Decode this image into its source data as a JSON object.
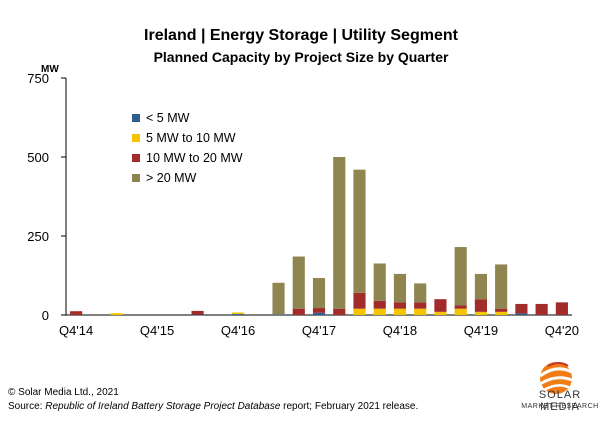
{
  "title_line1": "Ireland | Energy Storage | Utility Segment",
  "title_line2": "Planned Capacity by Project Size by Quarter",
  "footer": {
    "copyright": "© Solar Media Ltd., 2021",
    "source_prefix": "Source: ",
    "source_italic": "Republic of Ireland Battery Storage Project Database",
    "source_suffix": " report; February 2021 release."
  },
  "logo": {
    "line1": "SOLAR MEDIA",
    "line2": "MARKET RESEARCH"
  },
  "colors": {
    "lt5": "#2e5e8e",
    "5to10": "#f5c400",
    "10to20": "#a22b2b",
    "gt20": "#8f8551"
  },
  "chart_data": {
    "type": "bar",
    "stacked": true,
    "ylabel": "MW",
    "ylim": [
      0,
      750
    ],
    "yticks": [
      0,
      250,
      500,
      750
    ],
    "x_tick_labels": [
      "Q4'14",
      "Q4'15",
      "Q4'16",
      "Q4'17",
      "Q4'18",
      "Q4'19",
      "Q4'20"
    ],
    "categories": [
      "Q4'14",
      "Q1'15",
      "Q2'15",
      "Q3'15",
      "Q4'15",
      "Q1'16",
      "Q2'16",
      "Q3'16",
      "Q4'16",
      "Q1'17",
      "Q2'17",
      "Q3'17",
      "Q4'17",
      "Q1'18",
      "Q2'18",
      "Q3'18",
      "Q4'18",
      "Q1'19",
      "Q2'19",
      "Q3'19",
      "Q4'19",
      "Q1'20",
      "Q2'20",
      "Q3'20",
      "Q4'20"
    ],
    "grid": false,
    "legend_position": "top-left",
    "series": [
      {
        "name": "< 5 MW",
        "color_key": "lt5",
        "values": [
          0,
          0,
          0,
          0,
          0,
          0,
          1,
          0,
          3,
          0,
          2,
          0,
          7,
          0,
          0,
          0,
          0,
          0,
          0,
          0,
          0,
          0,
          5,
          0,
          0
        ]
      },
      {
        "name": "5 MW to 10 MW",
        "color_key": "5to10",
        "values": [
          0,
          0,
          6,
          0,
          0,
          0,
          0,
          0,
          5,
          0,
          0,
          0,
          0,
          0,
          20,
          20,
          20,
          20,
          10,
          20,
          10,
          10,
          0,
          0,
          0
        ]
      },
      {
        "name": "10 MW to 20 MW",
        "color_key": "10to20",
        "values": [
          12,
          0,
          0,
          0,
          0,
          0,
          12,
          0,
          0,
          0,
          0,
          20,
          15,
          20,
          50,
          25,
          20,
          20,
          40,
          10,
          40,
          10,
          30,
          35,
          40
        ]
      },
      {
        "name": "> 20 MW",
        "color_key": "gt20",
        "values": [
          0,
          0,
          0,
          0,
          0,
          0,
          0,
          0,
          0,
          0,
          100,
          165,
          95,
          480,
          390,
          118,
          90,
          60,
          0,
          185,
          80,
          140,
          0,
          0,
          0
        ]
      }
    ]
  }
}
